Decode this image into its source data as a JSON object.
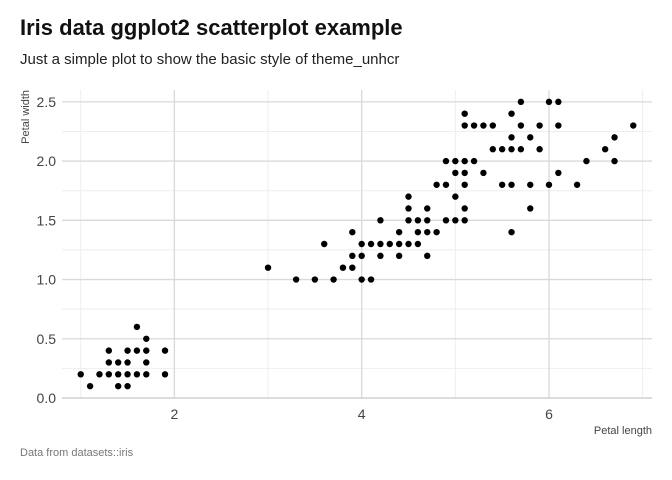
{
  "title": "Iris data ggplot2 scatterplot example",
  "subtitle": "Just a simple plot to show the basic style of theme_unhcr",
  "caption": "Data from datasets::iris",
  "chart_data": {
    "type": "scatter",
    "xlabel": "Petal length",
    "ylabel": "Petal width",
    "xlim": [
      0.8,
      7.1
    ],
    "ylim": [
      0,
      2.6
    ],
    "x_major_ticks": [
      2,
      4,
      6
    ],
    "x_major_tick_labels": [
      "2",
      "4",
      "6"
    ],
    "x_minor_ticks": [
      1,
      3,
      5,
      7
    ],
    "y_major_ticks": [
      0,
      0.5,
      1.0,
      1.5,
      2.0,
      2.5
    ],
    "y_major_tick_labels": [
      "0.0",
      "0.5",
      "1.0",
      "1.5",
      "2.0",
      "2.5"
    ],
    "y_minor_ticks": [
      0.25,
      0.75,
      1.25,
      1.75,
      2.25
    ],
    "grid": true,
    "point_color": "#000000",
    "points": [
      [
        1.0,
        0.2
      ],
      [
        1.1,
        0.1
      ],
      [
        1.2,
        0.2
      ],
      [
        1.3,
        0.2
      ],
      [
        1.3,
        0.3
      ],
      [
        1.3,
        0.4
      ],
      [
        1.4,
        0.1
      ],
      [
        1.4,
        0.2
      ],
      [
        1.4,
        0.3
      ],
      [
        1.5,
        0.1
      ],
      [
        1.5,
        0.2
      ],
      [
        1.5,
        0.3
      ],
      [
        1.5,
        0.4
      ],
      [
        1.6,
        0.2
      ],
      [
        1.6,
        0.4
      ],
      [
        1.6,
        0.6
      ],
      [
        1.7,
        0.2
      ],
      [
        1.7,
        0.3
      ],
      [
        1.7,
        0.4
      ],
      [
        1.7,
        0.5
      ],
      [
        1.9,
        0.2
      ],
      [
        1.9,
        0.4
      ],
      [
        3.0,
        1.1
      ],
      [
        3.3,
        1.0
      ],
      [
        3.5,
        1.0
      ],
      [
        3.6,
        1.3
      ],
      [
        3.7,
        1.0
      ],
      [
        3.8,
        1.1
      ],
      [
        3.9,
        1.1
      ],
      [
        3.9,
        1.2
      ],
      [
        3.9,
        1.4
      ],
      [
        4.0,
        1.0
      ],
      [
        4.0,
        1.2
      ],
      [
        4.0,
        1.3
      ],
      [
        4.1,
        1.0
      ],
      [
        4.1,
        1.3
      ],
      [
        4.2,
        1.2
      ],
      [
        4.2,
        1.3
      ],
      [
        4.2,
        1.5
      ],
      [
        4.3,
        1.3
      ],
      [
        4.4,
        1.2
      ],
      [
        4.4,
        1.3
      ],
      [
        4.4,
        1.4
      ],
      [
        4.5,
        1.3
      ],
      [
        4.5,
        1.5
      ],
      [
        4.5,
        1.6
      ],
      [
        4.5,
        1.7
      ],
      [
        4.6,
        1.3
      ],
      [
        4.6,
        1.4
      ],
      [
        4.6,
        1.5
      ],
      [
        4.7,
        1.2
      ],
      [
        4.7,
        1.4
      ],
      [
        4.7,
        1.5
      ],
      [
        4.7,
        1.6
      ],
      [
        4.8,
        1.4
      ],
      [
        4.8,
        1.8
      ],
      [
        4.9,
        1.5
      ],
      [
        4.9,
        1.8
      ],
      [
        4.9,
        2.0
      ],
      [
        5.0,
        1.5
      ],
      [
        5.0,
        1.7
      ],
      [
        5.0,
        1.9
      ],
      [
        5.0,
        2.0
      ],
      [
        5.1,
        1.5
      ],
      [
        5.1,
        1.6
      ],
      [
        5.1,
        1.8
      ],
      [
        5.1,
        1.9
      ],
      [
        5.1,
        2.0
      ],
      [
        5.1,
        2.3
      ],
      [
        5.1,
        2.4
      ],
      [
        5.2,
        2.0
      ],
      [
        5.2,
        2.3
      ],
      [
        5.3,
        1.9
      ],
      [
        5.3,
        2.3
      ],
      [
        5.4,
        2.1
      ],
      [
        5.4,
        2.3
      ],
      [
        5.5,
        1.8
      ],
      [
        5.5,
        2.1
      ],
      [
        5.6,
        1.4
      ],
      [
        5.6,
        1.8
      ],
      [
        5.6,
        2.1
      ],
      [
        5.6,
        2.2
      ],
      [
        5.6,
        2.4
      ],
      [
        5.7,
        2.1
      ],
      [
        5.7,
        2.3
      ],
      [
        5.7,
        2.5
      ],
      [
        5.8,
        1.6
      ],
      [
        5.8,
        1.8
      ],
      [
        5.8,
        2.2
      ],
      [
        5.9,
        2.1
      ],
      [
        5.9,
        2.3
      ],
      [
        6.0,
        1.8
      ],
      [
        6.0,
        2.5
      ],
      [
        6.1,
        1.9
      ],
      [
        6.1,
        2.3
      ],
      [
        6.1,
        2.5
      ],
      [
        6.3,
        1.8
      ],
      [
        6.4,
        2.0
      ],
      [
        6.6,
        2.1
      ],
      [
        6.7,
        2.0
      ],
      [
        6.7,
        2.2
      ],
      [
        6.9,
        2.3
      ]
    ]
  }
}
